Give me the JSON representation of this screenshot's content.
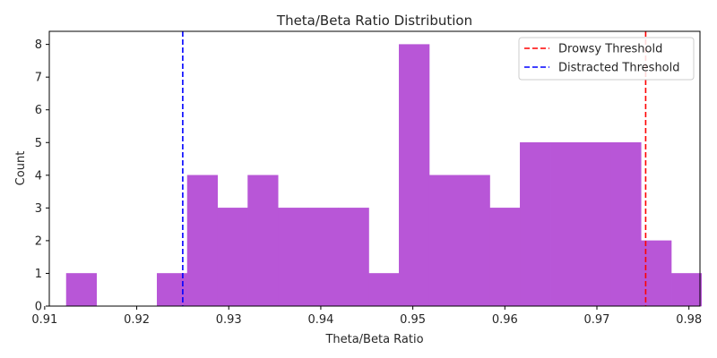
{
  "chart_data": {
    "type": "bar",
    "title": "Theta/Beta Ratio Distribution",
    "xlabel": "Theta/Beta Ratio",
    "ylabel": "Count",
    "xlim": [
      0.9105,
      0.9812
    ],
    "ylim": [
      0,
      8.4
    ],
    "xticks": [
      0.91,
      0.92,
      0.93,
      0.94,
      0.95,
      0.96,
      0.97,
      0.98
    ],
    "xtick_labels": [
      "0.91",
      "0.92",
      "0.93",
      "0.94",
      "0.95",
      "0.96",
      "0.97",
      "0.98"
    ],
    "yticks": [
      0,
      1,
      2,
      3,
      4,
      5,
      6,
      7,
      8
    ],
    "ytick_labels": [
      "0",
      "1",
      "2",
      "3",
      "4",
      "5",
      "6",
      "7",
      "8"
    ],
    "bins": {
      "start": 0.91235,
      "width": 0.003287,
      "counts": [
        1,
        0,
        0,
        1,
        4,
        3,
        4,
        3,
        3,
        3,
        1,
        8,
        4,
        4,
        3,
        5,
        5,
        5,
        5,
        2,
        1
      ]
    },
    "bar_color": "#b856d7",
    "thresholds": [
      {
        "name": "Drowsy Threshold",
        "x": 0.9753,
        "color": "#ff0000"
      },
      {
        "name": "Distracted Threshold",
        "x": 0.925,
        "color": "#0000ff"
      }
    ],
    "legend_position": "top-right",
    "grid": false
  }
}
